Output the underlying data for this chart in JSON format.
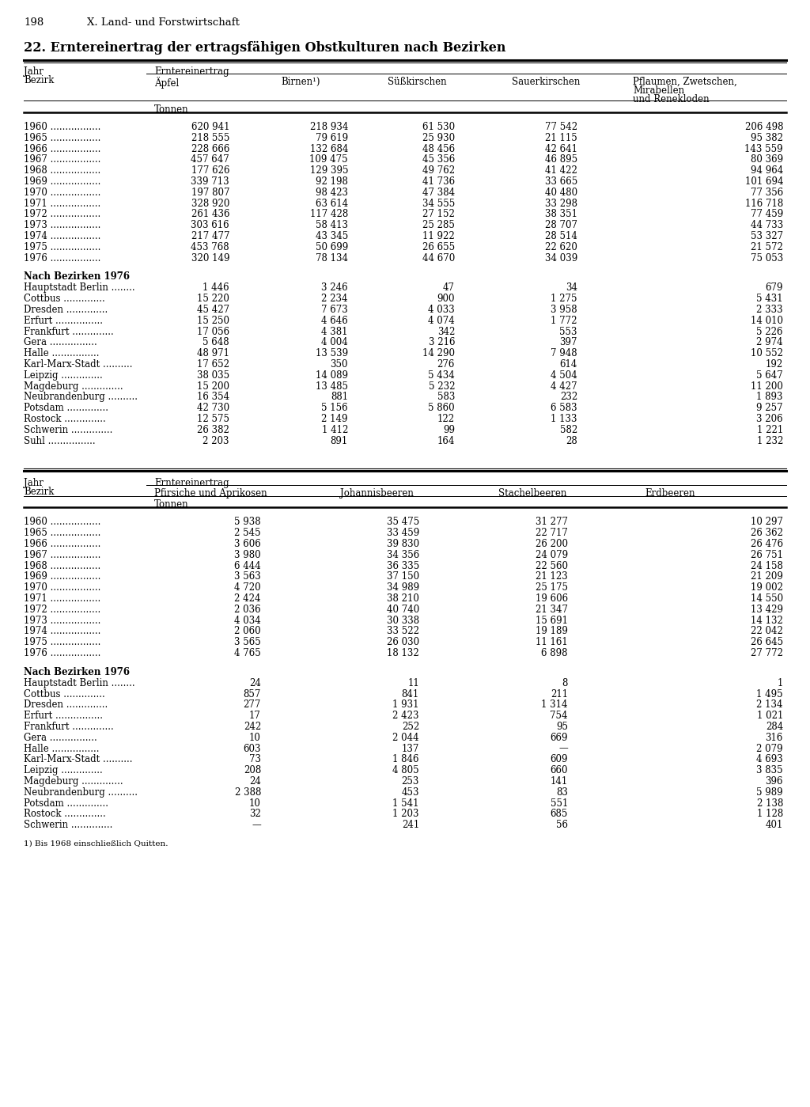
{
  "page_number": "198",
  "chapter": "X. Land- und Forstwirtschaft",
  "title": "22. Erntereinertrag der ertragsfähigen Obstkulturen nach Bezirken",
  "table1": {
    "unit": "Tonnen",
    "years_data": [
      [
        "1960",
        "620 941",
        "218 934",
        "61 530",
        "77 542",
        "206 498"
      ],
      [
        "1965",
        "218 555",
        "79 619",
        "25 930",
        "21 115",
        "95 382"
      ],
      [
        "1966",
        "228 666",
        "132 684",
        "48 456",
        "42 641",
        "143 559"
      ],
      [
        "1967",
        "457 647",
        "109 475",
        "45 356",
        "46 895",
        "80 369"
      ],
      [
        "1968",
        "177 626",
        "129 395",
        "49 762",
        "41 422",
        "94 964"
      ],
      [
        "1969",
        "339 713",
        "92 198",
        "41 736",
        "33 665",
        "101 694"
      ],
      [
        "1970",
        "197 807",
        "98 423",
        "47 384",
        "40 480",
        "77 356"
      ],
      [
        "1971",
        "328 920",
        "63 614",
        "34 555",
        "33 298",
        "116 718"
      ],
      [
        "1972",
        "261 436",
        "117 428",
        "27 152",
        "38 351",
        "77 459"
      ],
      [
        "1973",
        "303 616",
        "58 413",
        "25 285",
        "28 707",
        "44 733"
      ],
      [
        "1974",
        "217 477",
        "43 345",
        "11 922",
        "28 514",
        "53 327"
      ],
      [
        "1975",
        "453 768",
        "50 699",
        "26 655",
        "22 620",
        "21 572"
      ],
      [
        "1976",
        "320 149",
        "78 134",
        "44 670",
        "34 039",
        "75 053"
      ]
    ],
    "bezirk_section_title": "Nach Bezirken 1976",
    "bezirk_data": [
      [
        "Hauptstadt Berlin",
        "1 446",
        "3 246",
        "47",
        "34",
        "679"
      ],
      [
        "Cottbus",
        "15 220",
        "2 234",
        "900",
        "1 275",
        "5 431"
      ],
      [
        "Dresden",
        "45 427",
        "7 673",
        "4 033",
        "3 958",
        "2 333"
      ],
      [
        "Erfurt",
        "15 250",
        "4 646",
        "4 074",
        "1 772",
        "14 010"
      ],
      [
        "Frankfurt",
        "17 056",
        "4 381",
        "342",
        "553",
        "5 226"
      ],
      [
        "Gera",
        "5 648",
        "4 004",
        "3 216",
        "397",
        "2 974"
      ],
      [
        "Halle",
        "48 971",
        "13 539",
        "14 290",
        "7 948",
        "10 552"
      ],
      [
        "Karl-Marx-Stadt",
        "17 652",
        "350",
        "276",
        "614",
        "192"
      ],
      [
        "Leipzig",
        "38 035",
        "14 089",
        "5 434",
        "4 504",
        "5 647"
      ],
      [
        "Magdeburg",
        "15 200",
        "13 485",
        "5 232",
        "4 427",
        "11 200"
      ],
      [
        "Neubrandenburg",
        "16 354",
        "881",
        "583",
        "232",
        "1 893"
      ],
      [
        "Potsdam",
        "42 730",
        "5 156",
        "5 860",
        "6 583",
        "9 257"
      ],
      [
        "Rostock",
        "12 575",
        "2 149",
        "122",
        "1 133",
        "3 206"
      ],
      [
        "Schwerin",
        "26 382",
        "1 412",
        "99",
        "582",
        "1 221"
      ],
      [
        "Suhl",
        "2 203",
        "891",
        "164",
        "28",
        "1 232"
      ]
    ]
  },
  "table2": {
    "unit": "Tonnen",
    "years_data": [
      [
        "1960",
        "5 938",
        "35 475",
        "31 277",
        "10 297"
      ],
      [
        "1965",
        "2 545",
        "33 459",
        "22 717",
        "26 362"
      ],
      [
        "1966",
        "3 606",
        "39 830",
        "26 200",
        "26 476"
      ],
      [
        "1967",
        "3 980",
        "34 356",
        "24 079",
        "26 751"
      ],
      [
        "1968",
        "6 444",
        "36 335",
        "22 560",
        "24 158"
      ],
      [
        "1969",
        "3 563",
        "37 150",
        "21 123",
        "21 209"
      ],
      [
        "1970",
        "4 720",
        "34 989",
        "25 175",
        "19 002"
      ],
      [
        "1971",
        "2 424",
        "38 210",
        "19 606",
        "14 550"
      ],
      [
        "1972",
        "2 036",
        "40 740",
        "21 347",
        "13 429"
      ],
      [
        "1973",
        "4 034",
        "30 338",
        "15 691",
        "14 132"
      ],
      [
        "1974",
        "2 060",
        "33 522",
        "19 189",
        "22 042"
      ],
      [
        "1975",
        "3 565",
        "26 030",
        "11 161",
        "26 645"
      ],
      [
        "1976",
        "4 765",
        "18 132",
        "6 898",
        "27 772"
      ]
    ],
    "bezirk_section_title": "Nach Bezirken 1976",
    "bezirk_data": [
      [
        "Hauptstadt Berlin",
        "24",
        "11",
        "8",
        "1"
      ],
      [
        "Cottbus",
        "857",
        "841",
        "211",
        "1 495"
      ],
      [
        "Dresden",
        "277",
        "1 931",
        "1 314",
        "2 134"
      ],
      [
        "Erfurt",
        "17",
        "2 423",
        "754",
        "1 021"
      ],
      [
        "Frankfurt",
        "242",
        "252",
        "95",
        "284"
      ],
      [
        "Gera",
        "10",
        "2 044",
        "669",
        "316"
      ],
      [
        "Halle",
        "603",
        "137",
        "—",
        "2 079"
      ],
      [
        "Karl-Marx-Stadt",
        "73",
        "1 846",
        "609",
        "4 693"
      ],
      [
        "Leipzig",
        "208",
        "4 805",
        "660",
        "3 835"
      ],
      [
        "Magdeburg",
        "24",
        "253",
        "141",
        "396"
      ],
      [
        "Neubrandenburg",
        "2 388",
        "453",
        "83",
        "5 989"
      ],
      [
        "Potsdam",
        "10",
        "1 541",
        "551",
        "2 138"
      ],
      [
        "Rostock",
        "32",
        "1 203",
        "685",
        "1 128"
      ],
      [
        "Schwerin",
        "—",
        "241",
        "56",
        "401"
      ]
    ]
  },
  "footnote": "1) Bis 1968 einschließlich Quitten."
}
